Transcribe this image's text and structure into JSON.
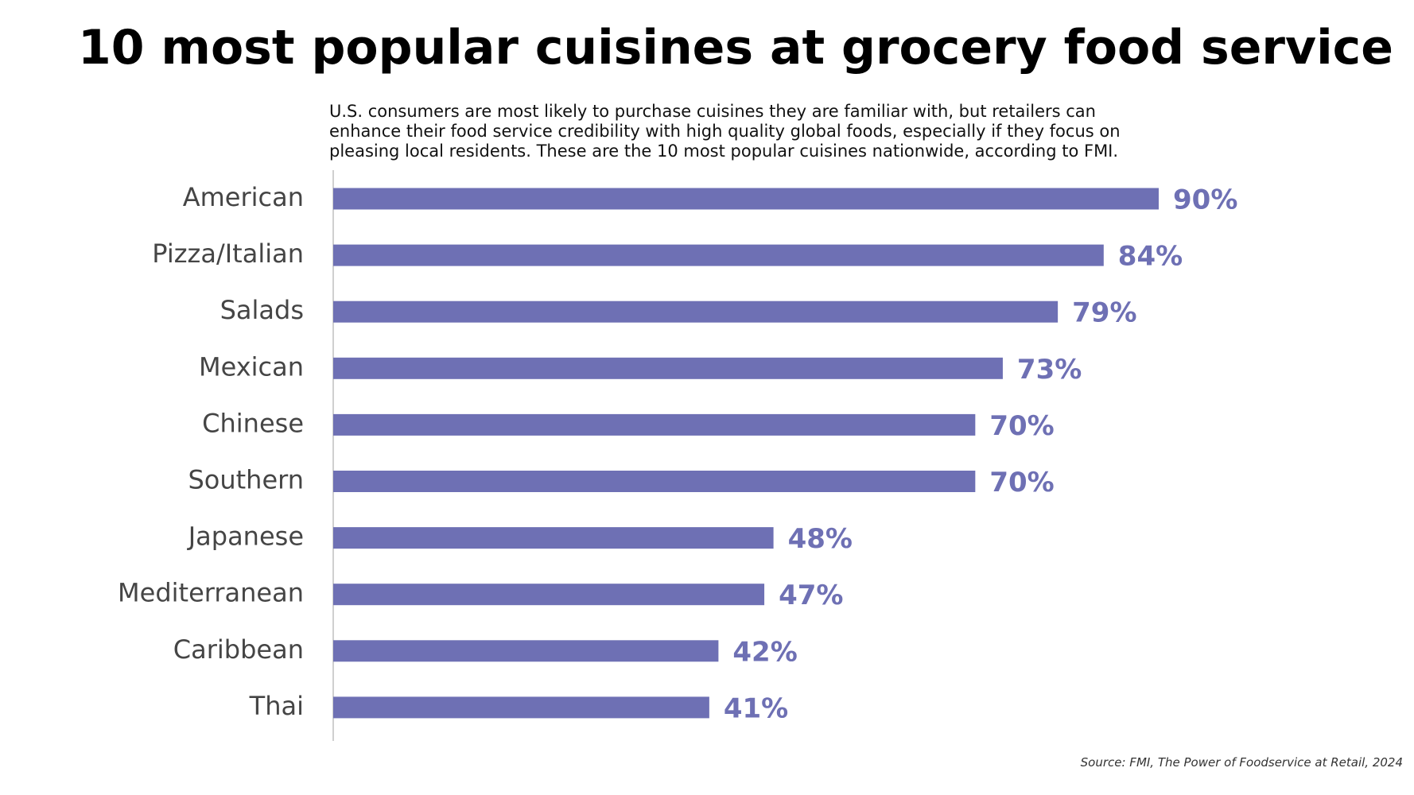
{
  "chart_data": {
    "type": "bar",
    "orientation": "horizontal",
    "title": "10 most popular cuisines at grocery food service",
    "subtitle": "U.S. consumers are most likely to purchase cuisines they are familiar with, but retailers can enhance their food service credibility with high quality global foods, especially if they focus on pleasing local residents. These are the 10 most popular cuisines nationwide, according to FMI.",
    "source": "Source: FMI, The Power of Foodservice at Retail, 2024",
    "categories": [
      "American",
      "Pizza/Italian",
      "Salads",
      "Mexican",
      "Chinese",
      "Southern",
      "Japanese",
      "Mediterranean",
      "Caribbean",
      "Thai"
    ],
    "values": [
      90,
      84,
      79,
      73,
      70,
      70,
      48,
      47,
      42,
      41
    ],
    "value_labels": [
      "90%",
      "84%",
      "79%",
      "73%",
      "70%",
      "70%",
      "48%",
      "47%",
      "42%",
      "41%"
    ],
    "color": "#6e70b4"
  }
}
